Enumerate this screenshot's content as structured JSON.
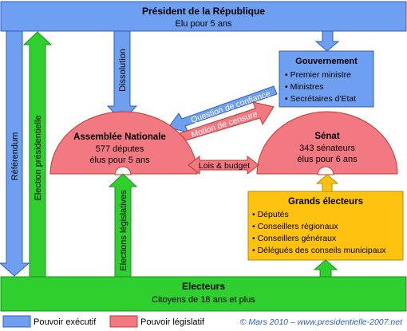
{
  "president": {
    "title": "Président de la République",
    "subtitle": "Elu pour 5 ans"
  },
  "gouvernement": {
    "title": "Gouvernement",
    "members": [
      "Premier ministre",
      "Ministres",
      "Secrétaires d'Etat"
    ]
  },
  "assemblee": {
    "title": "Assemblée Nationale",
    "line1": "577 députes",
    "line2": "élus pour 5 ans"
  },
  "senat": {
    "title": "Sénat",
    "line1": "343 sénateurs",
    "line2": "élus pour 6 ans"
  },
  "grands_electeurs": {
    "title": "Grands électeurs",
    "members": [
      "Députés",
      "Conseillers régionaux",
      "Conseillers généraux",
      "Délégués des conseils municipaux"
    ]
  },
  "electeurs": {
    "title": "Electeurs",
    "subtitle": "Citoyens de 18 ans et plus"
  },
  "arrows": {
    "referendum": "Référendum",
    "election_presidentielle": "Election présidentielle",
    "dissolution": "Dissolution",
    "question_confiance": "Question de confiance",
    "motion_censure": "Motion de censure",
    "lois_budget": "Lois & budget",
    "elections_legislatives": "Elections législatives"
  },
  "legend": {
    "executif": "Pouvoir exécutif",
    "legislatif": "Pouvoir législatif"
  },
  "copyright": "© Mars 2010 – www.presidentielle-2007.net",
  "colors": {
    "executif_fill": "#6e9ff0",
    "executif_border": "#2f5fb8",
    "legislatif_fill": "#f27882",
    "legislatif_border": "#c0392b",
    "electeurs_fill": "#2fcf2f",
    "grands_electeurs_fill": "#ffc20e"
  }
}
